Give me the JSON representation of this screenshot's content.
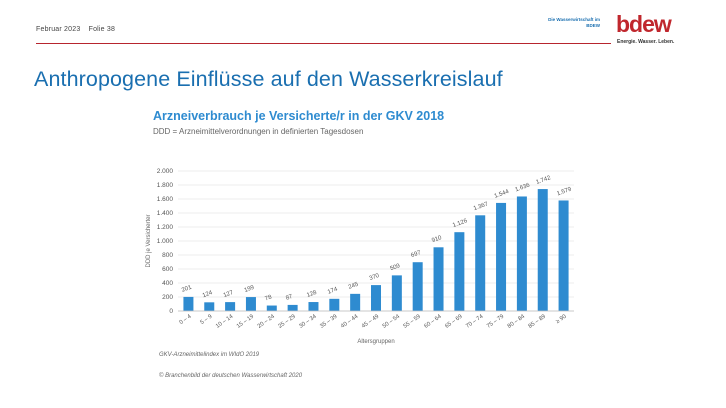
{
  "header": {
    "date": "Februar 2023",
    "slide": "Folie 38",
    "tagline": "Die Wasserwirtschaft im BDEW",
    "logo_text": "bdew",
    "logo_claim": "Energie. Wasser. Leben."
  },
  "page_title": "Anthropogene Einflüsse auf den Wasserkreislauf",
  "chart_data": {
    "type": "bar",
    "title": "Arzneiverbrauch je Versicherte/r in der GKV 2018",
    "subtitle": "DDD = Arzneimittelverordnungen in definierten Tagesdosen",
    "xlabel": "Altersgruppen",
    "ylabel": "DDD je Versicherter",
    "ylim": [
      0,
      2000
    ],
    "yticks": [
      0,
      200,
      400,
      600,
      800,
      1000,
      1200,
      1400,
      1600,
      1800,
      2000
    ],
    "ytick_labels": [
      "0",
      "200",
      "400",
      "600",
      "800",
      "1.000",
      "1.200",
      "1.400",
      "1.600",
      "1.800",
      "2.000"
    ],
    "categories": [
      "0 – 4",
      "5 – 9",
      "10 – 14",
      "15 – 19",
      "20 – 24",
      "25 – 29",
      "30 – 34",
      "35 – 39",
      "40 – 44",
      "45 – 49",
      "50 – 54",
      "55 – 59",
      "60 – 64",
      "65 – 69",
      "70 – 74",
      "75 – 79",
      "80 – 84",
      "85 – 89",
      "≥ 90"
    ],
    "values": [
      201,
      124,
      127,
      199,
      78,
      87,
      128,
      174,
      245,
      370,
      509,
      697,
      910,
      1126,
      1367,
      1544,
      1636,
      1742,
      1579
    ],
    "value_labels": [
      "201",
      "124",
      "127",
      "199",
      "78",
      "87",
      "128",
      "174",
      "245",
      "370",
      "509",
      "697",
      "910",
      "1.126",
      "1.367",
      "1.544",
      "1.636",
      "1.742",
      "1.579"
    ],
    "bar_color": "#2e8bd0",
    "grid": true
  },
  "footnotes": {
    "source": "GKV-Arzneimittelindex im WIdO 2019",
    "copyright": "© Branchenbild der deutschen Wasserwirtschaft 2020"
  }
}
